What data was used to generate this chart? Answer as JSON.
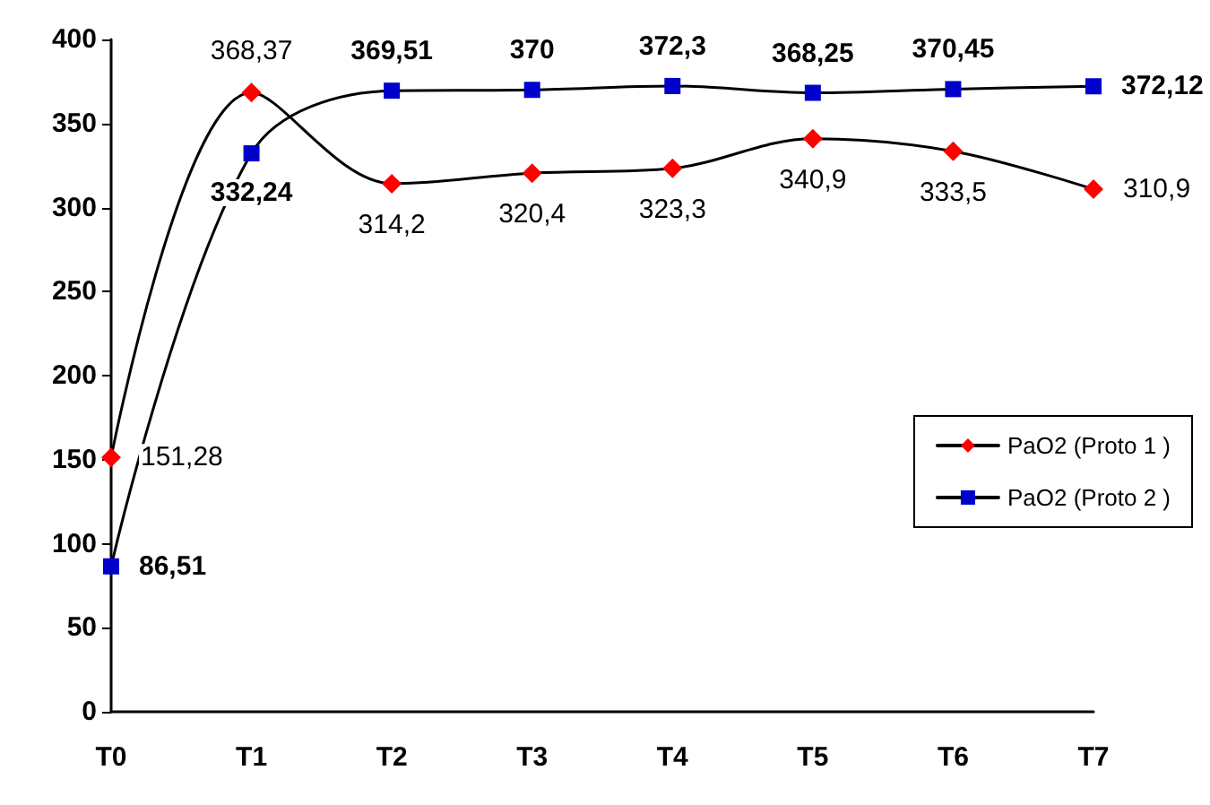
{
  "chart_data": {
    "type": "line",
    "categories": [
      "T0",
      "T1",
      "T2",
      "T3",
      "T4",
      "T5",
      "T6",
      "T7"
    ],
    "ylim": [
      0,
      400
    ],
    "yticks": [
      0,
      50,
      100,
      150,
      200,
      250,
      300,
      350,
      400
    ],
    "grid": false,
    "legend": "right",
    "line_style": "solid",
    "series": [
      {
        "name": "PaO2 (Proto 1 )",
        "color": "#ff0000",
        "marker": "diamond",
        "values": [
          151.28,
          368.37,
          314.2,
          320.4,
          323.3,
          340.9,
          333.5,
          310.9
        ],
        "value_labels": [
          "151,28",
          "368,37",
          "314,2",
          "320,4",
          "323,3",
          "340,9",
          "333,5",
          "310,9"
        ]
      },
      {
        "name": "PaO2 (Proto 2 )",
        "color": "#0000cc",
        "marker": "square",
        "values": [
          86.51,
          332.24,
          369.51,
          370,
          372.3,
          368.25,
          370.45,
          372.12
        ],
        "value_labels": [
          "86,51",
          "332,24",
          "369,51",
          "370",
          "372,3",
          "368,25",
          "370,45",
          "372,12"
        ]
      }
    ]
  }
}
